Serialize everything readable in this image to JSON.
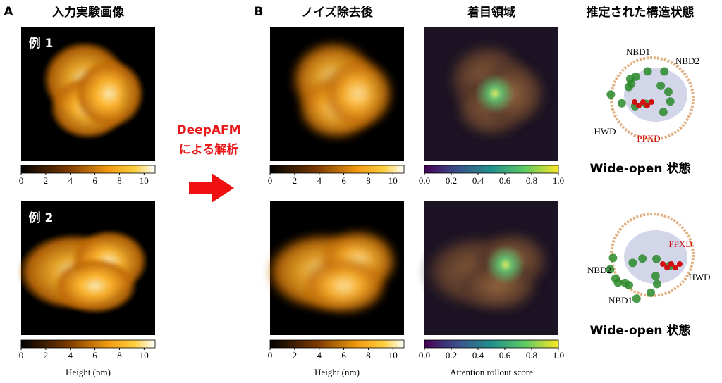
{
  "panel_a": {
    "label": "A",
    "title": "入力実験画像",
    "examples": [
      "例 1",
      "例 2"
    ],
    "colorbar": {
      "ticks": [
        "0",
        "2",
        "4",
        "6",
        "8",
        "10"
      ],
      "label": "Height (nm)"
    }
  },
  "arrow": {
    "lines": [
      "DeepAFM",
      "による解析"
    ]
  },
  "panel_b": {
    "label": "B",
    "columns": [
      {
        "title": "ノイズ除去後",
        "colorbar": {
          "ticks": [
            "0",
            "2",
            "4",
            "6",
            "8",
            "10"
          ],
          "label": "Height (nm)"
        }
      },
      {
        "title": "着目領域",
        "colorbar": {
          "ticks": [
            "0.0",
            "0.2",
            "0.4",
            "0.6",
            "0.8",
            "1.0"
          ],
          "label": "Attention rollout score"
        }
      },
      {
        "title": "推定された構造状態"
      }
    ],
    "structures": [
      {
        "labels": [
          "NBD1",
          "NBD2",
          "HWD",
          "PPXD"
        ],
        "state": "Wide-open 状態"
      },
      {
        "labels": [
          "NBD1",
          "NBD2",
          "HWD",
          "PPXD"
        ],
        "state": "Wide-open 状態"
      }
    ]
  }
}
